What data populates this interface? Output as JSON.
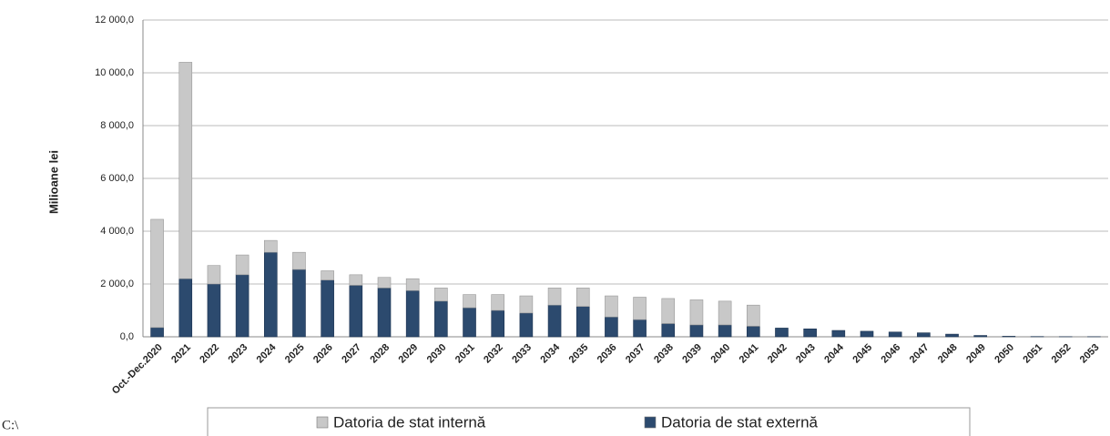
{
  "chart_data": {
    "type": "stacked_bar",
    "y_label": "Milioane lei",
    "annotation": "C:\\",
    "categories": [
      "Oct.-Dec.2020",
      "2021",
      "2022",
      "2023",
      "2024",
      "2025",
      "2026",
      "2027",
      "2028",
      "2029",
      "2030",
      "2031",
      "2032",
      "2033",
      "2034",
      "2035",
      "2036",
      "2037",
      "2038",
      "2039",
      "2040",
      "2041",
      "2042",
      "2043",
      "2044",
      "2045",
      "2046",
      "2047",
      "2048",
      "2049",
      "2050",
      "2051",
      "2052",
      "2053"
    ],
    "series": [
      {
        "name": "Datoria de stat internă",
        "color": "#c8c8c8",
        "values": [
          4100,
          8200,
          700,
          750,
          450,
          650,
          350,
          400,
          400,
          450,
          500,
          500,
          600,
          650,
          650,
          700,
          800,
          850,
          950,
          950,
          900,
          800,
          0,
          0,
          0,
          0,
          0,
          0,
          0,
          0,
          0,
          0,
          0,
          0
        ]
      },
      {
        "name": "Datoria de stat externă",
        "color": "#2c4a6e",
        "values": [
          350,
          2200,
          2000,
          2350,
          3200,
          2550,
          2150,
          1950,
          1850,
          1750,
          1350,
          1100,
          1000,
          900,
          1200,
          1150,
          750,
          650,
          500,
          450,
          450,
          400,
          330,
          300,
          240,
          210,
          180,
          150,
          100,
          50,
          20,
          10,
          5,
          5
        ]
      }
    ],
    "ylim": [
      0,
      12000
    ],
    "yticks": [
      {
        "value": 0,
        "label": "0,0"
      },
      {
        "value": 2000,
        "label": "2 000,0"
      },
      {
        "value": 4000,
        "label": "4 000,0"
      },
      {
        "value": 6000,
        "label": "6 000,0"
      },
      {
        "value": 8000,
        "label": "8 000,0"
      },
      {
        "value": 10000,
        "label": "10 000,0"
      },
      {
        "value": 12000,
        "label": "12 000,0"
      }
    ],
    "grid": true
  }
}
